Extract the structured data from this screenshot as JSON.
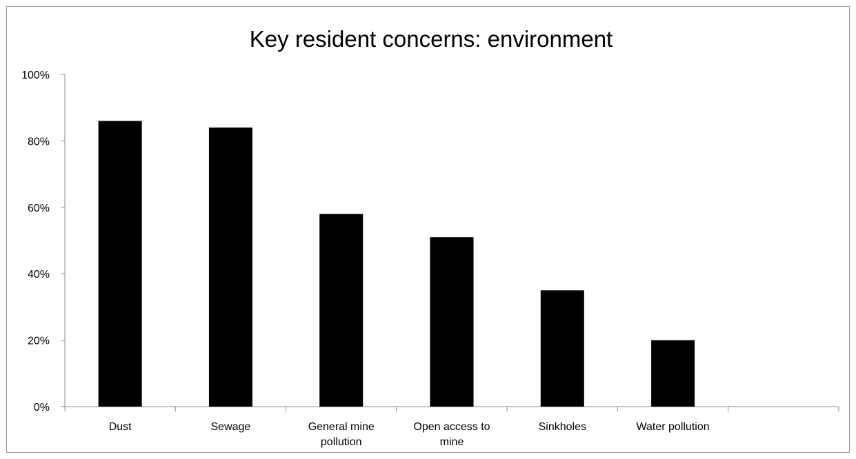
{
  "chart_data": {
    "type": "bar",
    "title": "Key resident concerns: environment",
    "xlabel": "",
    "ylabel": "",
    "categories": [
      [
        "Dust"
      ],
      [
        "Sewage"
      ],
      [
        "General mine",
        "pollution"
      ],
      [
        "Open access to",
        "mine"
      ],
      [
        "Sinkholes"
      ],
      [
        "Water pollution"
      ]
    ],
    "values": [
      86,
      84,
      58,
      51,
      35,
      20
    ],
    "ylim": [
      0,
      100
    ],
    "yticks": [
      0,
      20,
      40,
      60,
      80,
      100
    ],
    "ytick_labels": [
      "0%",
      "20%",
      "40%",
      "60%",
      "80%",
      "100%"
    ],
    "grid": false,
    "legend": "none",
    "bar_color": "#000000",
    "axis_color": "#8c8c8c"
  }
}
